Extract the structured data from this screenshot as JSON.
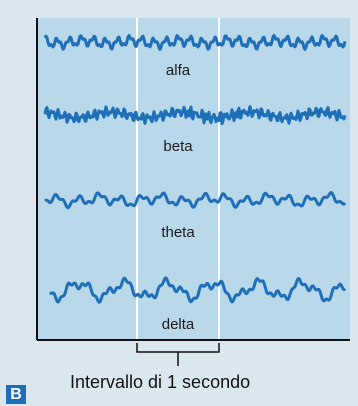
{
  "panel_label": "B",
  "interval_label": "Intervallo di 1 secondo",
  "waves": [
    {
      "name": "alfa",
      "label": "alfa"
    },
    {
      "name": "beta",
      "label": "beta"
    },
    {
      "name": "theta",
      "label": "theta"
    },
    {
      "name": "delta",
      "label": "delta"
    }
  ],
  "colors": {
    "background": "#dbe7ef",
    "plot_fill": "#b9d8ea",
    "wave": "#1f6fb8",
    "axis": "#111111",
    "marker": "#ffffff",
    "label_box": "#1f6fb8"
  }
}
